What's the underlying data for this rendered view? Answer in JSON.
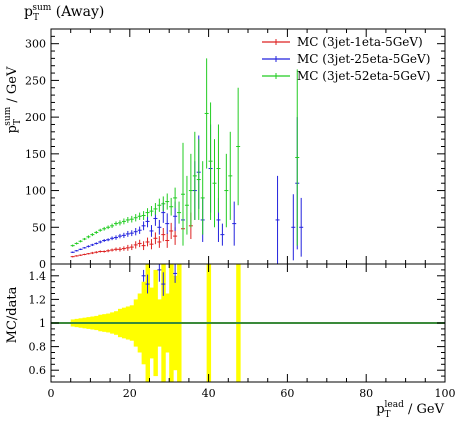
{
  "title": "p_T^sum (Away)",
  "title_main": "p",
  "title_sub": "T",
  "title_sup": "sum",
  "title_rest": " (Away)",
  "chart_data": [
    {
      "type": "line",
      "panel": "main",
      "ylabel": "p_T^sum / GeV",
      "ylim": [
        0,
        320
      ],
      "xlim": [
        0,
        100
      ],
      "yticks": [
        0,
        50,
        100,
        150,
        200,
        250,
        300
      ],
      "legend_position": "top-right",
      "series": [
        {
          "name": "MC (3jet-1eta-5GeV)",
          "color": "#dd2222",
          "points": [
            [
              5.5,
              10,
              1
            ],
            [
              6.5,
              11,
              1
            ],
            [
              7.5,
              12,
              1
            ],
            [
              8.5,
              13,
              1
            ],
            [
              9.5,
              14,
              1
            ],
            [
              10.5,
              15,
              1.5
            ],
            [
              11.5,
              16,
              1.5
            ],
            [
              12.5,
              17,
              1.5
            ],
            [
              13.5,
              17,
              1.5
            ],
            [
              14.5,
              18,
              2
            ],
            [
              15.5,
              19,
              2
            ],
            [
              16.5,
              20,
              2.5
            ],
            [
              17.5,
              20,
              3
            ],
            [
              18.5,
              21,
              3
            ],
            [
              19.5,
              22,
              4
            ],
            [
              20.5,
              23,
              4
            ],
            [
              21.5,
              26,
              5
            ],
            [
              22.5,
              28,
              5
            ],
            [
              23.5,
              25,
              6
            ],
            [
              24.5,
              30,
              6
            ],
            [
              25.5,
              27,
              7
            ],
            [
              26.5,
              35,
              8
            ],
            [
              27.5,
              30,
              8
            ],
            [
              28.5,
              40,
              9
            ],
            [
              29.5,
              32,
              10
            ],
            [
              30.5,
              45,
              11
            ],
            [
              31.5,
              38,
              12
            ],
            [
              33.5,
              48,
              15
            ],
            [
              35.5,
              52,
              18
            ]
          ]
        },
        {
          "name": "MC (3jet-25eta-5GeV)",
          "color": "#2222dd",
          "points": [
            [
              5.5,
              16,
              1
            ],
            [
              6.5,
              18,
              1
            ],
            [
              7.5,
              20,
              1
            ],
            [
              8.5,
              22,
              1
            ],
            [
              9.5,
              24,
              1.5
            ],
            [
              10.5,
              26,
              1.5
            ],
            [
              11.5,
              28,
              1.5
            ],
            [
              12.5,
              30,
              2
            ],
            [
              13.5,
              32,
              2
            ],
            [
              14.5,
              33,
              2
            ],
            [
              15.5,
              35,
              2.5
            ],
            [
              16.5,
              36,
              3
            ],
            [
              17.5,
              38,
              3
            ],
            [
              18.5,
              39,
              3.5
            ],
            [
              19.5,
              41,
              4
            ],
            [
              20.5,
              42,
              4
            ],
            [
              21.5,
              44,
              5
            ],
            [
              22.5,
              46,
              5
            ],
            [
              23.5,
              52,
              6
            ],
            [
              24.5,
              58,
              8
            ],
            [
              25.5,
              45,
              8
            ],
            [
              26.5,
              62,
              10
            ],
            [
              27.5,
              50,
              10
            ],
            [
              28.5,
              70,
              14
            ],
            [
              29.5,
              55,
              14
            ],
            [
              31.5,
              65,
              20
            ],
            [
              33.5,
              60,
              20
            ],
            [
              36.5,
              100,
              40
            ],
            [
              37.5,
              125,
              50
            ],
            [
              38.5,
              60,
              30
            ],
            [
              40.5,
              130,
              60
            ],
            [
              42.5,
              60,
              30
            ],
            [
              43.5,
              40,
              15
            ],
            [
              46.5,
              55,
              30
            ],
            [
              57.5,
              60,
              60
            ],
            [
              61.5,
              50,
              45
            ],
            [
              62.5,
              110,
              90
            ],
            [
              63.5,
              50,
              40
            ]
          ]
        },
        {
          "name": "MC (3jet-52eta-5GeV)",
          "color": "#22cc22",
          "points": [
            [
              5.5,
              25,
              1.5
            ],
            [
              6.5,
              28,
              1.5
            ],
            [
              7.5,
              31,
              1.5
            ],
            [
              8.5,
              34,
              1.5
            ],
            [
              9.5,
              37,
              2
            ],
            [
              10.5,
              40,
              2
            ],
            [
              11.5,
              43,
              2
            ],
            [
              12.5,
              46,
              2
            ],
            [
              13.5,
              48,
              2.5
            ],
            [
              14.5,
              50,
              2.5
            ],
            [
              15.5,
              52,
              3
            ],
            [
              16.5,
              55,
              3
            ],
            [
              17.5,
              56,
              3.5
            ],
            [
              18.5,
              58,
              4
            ],
            [
              19.5,
              60,
              4
            ],
            [
              20.5,
              61,
              4.5
            ],
            [
              21.5,
              63,
              5
            ],
            [
              22.5,
              65,
              5
            ],
            [
              23.5,
              66,
              6
            ],
            [
              24.5,
              70,
              6
            ],
            [
              25.5,
              72,
              7
            ],
            [
              26.5,
              75,
              8
            ],
            [
              27.5,
              80,
              9
            ],
            [
              28.5,
              82,
              10
            ],
            [
              29.5,
              85,
              11
            ],
            [
              30.5,
              78,
              12
            ],
            [
              31.5,
              90,
              14
            ],
            [
              32.5,
              70,
              15
            ],
            [
              33.5,
              95,
              70
            ],
            [
              34.5,
              80,
              40
            ],
            [
              35.5,
              100,
              50
            ],
            [
              36.5,
              120,
              60
            ],
            [
              37.5,
              115,
              55
            ],
            [
              38.5,
              90,
              50
            ],
            [
              39.5,
              205,
              75
            ],
            [
              40.5,
              140,
              80
            ],
            [
              41.5,
              110,
              60
            ],
            [
              42.5,
              130,
              60
            ],
            [
              44.5,
              100,
              50
            ],
            [
              45.5,
              120,
              60
            ],
            [
              47.5,
              160,
              80
            ],
            [
              62.5,
              145,
              120
            ]
          ]
        }
      ]
    },
    {
      "type": "line",
      "panel": "ratio",
      "ylabel": "MC/data",
      "xlabel": "p_T^lead / GeV",
      "ylim": [
        0.5,
        1.5
      ],
      "xlim": [
        0,
        100
      ],
      "yticks": [
        0.6,
        0.8,
        1,
        1.2,
        1.4
      ],
      "xticks": [
        0,
        20,
        40,
        60,
        80,
        100
      ],
      "reference_line": {
        "value": 1,
        "color": "#3a8a3a"
      },
      "uncertainty_band": {
        "color": "#ffff00",
        "bins": [
          [
            5,
            6,
            0.03
          ],
          [
            6,
            7,
            0.035
          ],
          [
            7,
            8,
            0.04
          ],
          [
            8,
            9,
            0.045
          ],
          [
            9,
            10,
            0.05
          ],
          [
            10,
            11,
            0.055
          ],
          [
            11,
            12,
            0.06
          ],
          [
            12,
            13,
            0.07
          ],
          [
            13,
            14,
            0.075
          ],
          [
            14,
            15,
            0.08
          ],
          [
            15,
            16,
            0.09
          ],
          [
            16,
            17,
            0.1
          ],
          [
            17,
            18,
            0.12
          ],
          [
            18,
            19,
            0.13
          ],
          [
            19,
            20,
            0.14
          ],
          [
            20,
            21,
            0.15
          ],
          [
            21,
            22,
            0.2
          ],
          [
            22,
            23,
            0.25
          ],
          [
            23,
            24,
            0.35
          ],
          [
            24,
            25,
            0.5
          ],
          [
            25,
            26,
            0.3
          ],
          [
            26,
            27,
            0.45
          ],
          [
            27,
            28,
            0.2
          ],
          [
            28,
            29,
            0.5
          ],
          [
            29,
            30,
            0.25
          ],
          [
            30,
            31,
            0.5
          ],
          [
            31,
            32,
            0.4
          ],
          [
            32,
            33,
            0.5
          ],
          [
            39.5,
            40.5,
            0.6
          ],
          [
            47,
            48,
            0.6
          ]
        ]
      },
      "ratio_points": [
        {
          "x": 23.5,
          "y": 1.4,
          "err": 0.05,
          "color": "#2222dd"
        },
        {
          "x": 24.5,
          "y": 1.33,
          "err": 0.08,
          "color": "#2222dd"
        },
        {
          "x": 27.5,
          "y": 1.45,
          "err": 0.1,
          "color": "#2222dd"
        },
        {
          "x": 28.5,
          "y": 1.33,
          "err": 0.1,
          "color": "#2222dd"
        },
        {
          "x": 31.5,
          "y": 1.42,
          "err": 0.08,
          "color": "#2222dd"
        }
      ]
    }
  ]
}
